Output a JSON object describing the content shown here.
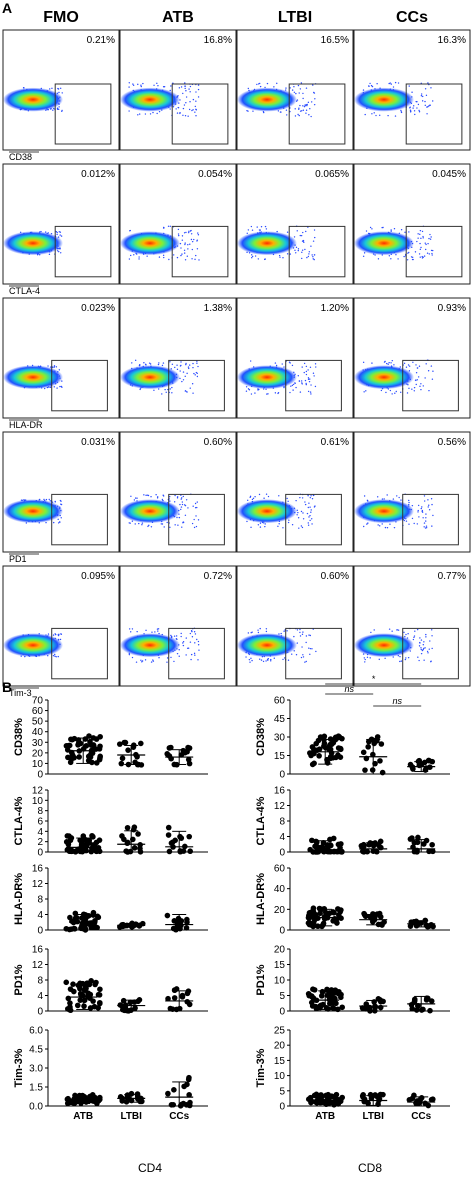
{
  "panel_a": {
    "label": "A",
    "groups": [
      "FMO",
      "ATB",
      "LTBI",
      "CCs"
    ],
    "rows": [
      {
        "marker": "CD38",
        "percents": [
          "0.21%",
          "16.8%",
          "16.5%",
          "16.3%"
        ]
      },
      {
        "marker": "CTLA-4",
        "percents": [
          "0.012%",
          "0.054%",
          "0.065%",
          "0.045%"
        ]
      },
      {
        "marker": "HLA-DR",
        "percents": [
          "0.023%",
          "1.38%",
          "1.20%",
          "0.93%"
        ]
      },
      {
        "marker": "PD1",
        "percents": [
          "0.031%",
          "0.60%",
          "0.61%",
          "0.56%"
        ]
      },
      {
        "marker": "Tim-3",
        "percents": [
          "0.095%",
          "0.72%",
          "0.60%",
          "0.77%"
        ]
      }
    ]
  },
  "panel_b": {
    "label": "B",
    "cd4_label": "CD4",
    "cd8_label": "CD8"
  },
  "chart_data": [
    {
      "type": "scatter",
      "xlabel": "",
      "ylabel": "CD38%",
      "categories": [
        "ATB",
        "LTBI",
        "CCs"
      ],
      "ylim": [
        0,
        70
      ],
      "yticks": [
        0,
        10,
        20,
        30,
        40,
        50,
        60,
        70
      ],
      "means": [
        22,
        18,
        16
      ],
      "sd": [
        12,
        9,
        7
      ],
      "annotations": []
    },
    {
      "type": "scatter",
      "xlabel": "",
      "ylabel": "CTLA-4%",
      "categories": [
        "ATB",
        "LTBI",
        "CCs"
      ],
      "ylim": [
        0,
        12
      ],
      "yticks": [
        0,
        2,
        4,
        6,
        8,
        10,
        12
      ],
      "means": [
        0.9,
        1.5,
        1.0
      ],
      "sd": [
        1.8,
        2.6,
        3.0
      ],
      "annotations": []
    },
    {
      "type": "scatter",
      "xlabel": "",
      "ylabel": "HLA-DR%",
      "categories": [
        "ATB",
        "LTBI",
        "CCs"
      ],
      "ylim": [
        0,
        16
      ],
      "yticks": [
        0,
        4,
        8,
        12,
        16
      ],
      "means": [
        2.0,
        1.2,
        1.4
      ],
      "sd": [
        2.0,
        0.4,
        2.6
      ],
      "annotations": []
    },
    {
      "type": "scatter",
      "xlabel": "",
      "ylabel": "PD1%",
      "categories": [
        "ATB",
        "LTBI",
        "CCs"
      ],
      "ylim": [
        0,
        16
      ],
      "yticks": [
        0,
        4,
        8,
        12,
        16
      ],
      "means": [
        3.6,
        1.4,
        2.6
      ],
      "sd": [
        3.2,
        1.4,
        2.6
      ],
      "annotations": []
    },
    {
      "type": "scatter",
      "xlabel": "CD4",
      "ylabel": "Tim-3%",
      "categories": [
        "ATB",
        "LTBI",
        "CCs"
      ],
      "ylim": [
        0,
        6.0
      ],
      "yticks": [
        "0.0",
        "1.5",
        "3.0",
        "4.5",
        "6.0"
      ],
      "means": [
        0.5,
        0.6,
        0.7
      ],
      "sd": [
        0.3,
        0.3,
        1.2
      ],
      "annotations": []
    },
    {
      "type": "scatter",
      "xlabel": "",
      "ylabel": "CD38%",
      "categories": [
        "ATB",
        "LTBI",
        "CCs"
      ],
      "ylim": [
        0,
        60
      ],
      "yticks": [
        0,
        15,
        30,
        45,
        60
      ],
      "means": [
        18,
        14,
        6
      ],
      "sd": [
        10,
        14,
        4
      ],
      "annotations": [
        "ns",
        "*",
        "ns"
      ]
    },
    {
      "type": "scatter",
      "xlabel": "",
      "ylabel": "CTLA-4%",
      "categories": [
        "ATB",
        "LTBI",
        "CCs"
      ],
      "ylim": [
        0,
        16
      ],
      "yticks": [
        0,
        4,
        8,
        12,
        16
      ],
      "means": [
        0.5,
        0.8,
        0.8
      ],
      "sd": [
        2.4,
        1.6,
        2.4
      ],
      "annotations": []
    },
    {
      "type": "scatter",
      "xlabel": "",
      "ylabel": "HLA-DR%",
      "categories": [
        "ATB",
        "LTBI",
        "CCs"
      ],
      "ylim": [
        0,
        60
      ],
      "yticks": [
        0,
        20,
        40,
        60
      ],
      "means": [
        12,
        10,
        6
      ],
      "sd": [
        8,
        5,
        3
      ],
      "annotations": []
    },
    {
      "type": "scatter",
      "xlabel": "",
      "ylabel": "PD1%",
      "categories": [
        "ATB",
        "LTBI",
        "CCs"
      ],
      "ylim": [
        0,
        20
      ],
      "yticks": [
        0,
        5,
        10,
        15,
        20
      ],
      "means": [
        3.5,
        1.6,
        2.3
      ],
      "sd": [
        3.0,
        1.8,
        2.4
      ],
      "annotations": []
    },
    {
      "type": "scatter",
      "xlabel": "CD8",
      "ylabel": "Tim-3%",
      "categories": [
        "ATB",
        "LTBI",
        "CCs"
      ],
      "ylim": [
        0,
        25
      ],
      "yticks": [
        0,
        5,
        10,
        15,
        20,
        25
      ],
      "means": [
        2,
        1.8,
        1.3
      ],
      "sd": [
        1.5,
        1.6,
        1.7
      ],
      "annotations": []
    }
  ]
}
